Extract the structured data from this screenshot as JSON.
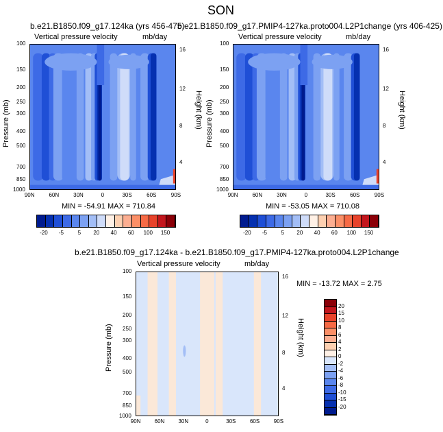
{
  "page_title": "SON",
  "colors": {
    "pos": [
      "#fff1e6",
      "#fdd0b1",
      "#fcae91",
      "#fb8f67",
      "#f66a45",
      "#e8432b",
      "#c3161d",
      "#8b0008"
    ],
    "neg": [
      "#001b8f",
      "#0530b0",
      "#1f4fd6",
      "#3d6ae6",
      "#5a86ee",
      "#7ca1f2",
      "#a3bef6",
      "#cfdcf9"
    ],
    "diff_base": "#d9e6fb",
    "diff_warm": "#fbe8d8"
  },
  "chart_data": [
    {
      "type": "heatmap",
      "title": "b.e21.B1850.f09_g17.124ka (yrs 456-475)",
      "left_label": "Vertical pressure velocity",
      "right_label": "mb/day",
      "ylabel": "Pressure (mb)",
      "y2label": "Height (km)",
      "x_ticks": [
        "90N",
        "60N",
        "30N",
        "0",
        "30S",
        "60S",
        "90S"
      ],
      "y_ticks": [
        "100",
        "150",
        "200",
        "250",
        "300",
        "400",
        "500",
        "700",
        "850",
        "1000"
      ],
      "y2_ticks": [
        "16",
        "12",
        "8",
        "4"
      ],
      "stats": "MIN = -54.91   MAX = 710.84"
    },
    {
      "type": "heatmap",
      "title": "b.e21.B1850.f09_g17.PMIP4-127ka.proto004.L2P1change (yrs 406-425)",
      "left_label": "Vertical pressure velocity",
      "right_label": "mb/day",
      "ylabel": "Pressure (mb)",
      "y2label": "Height (km)",
      "x_ticks": [
        "90N",
        "60N",
        "30N",
        "0",
        "30S",
        "60S",
        "90S"
      ],
      "y_ticks": [
        "100",
        "150",
        "200",
        "250",
        "300",
        "400",
        "500",
        "700",
        "850",
        "1000"
      ],
      "y2_ticks": [
        "16",
        "12",
        "8",
        "4"
      ],
      "stats": "MIN = -53.05   MAX = 710.08"
    },
    {
      "type": "heatmap",
      "title": "b.e21.B1850.f09_g17.124ka - b.e21.B1850.f09_g17.PMIP4-127ka.proto004.L2P1change",
      "left_label": "Vertical pressure velocity",
      "right_label": "mb/day",
      "ylabel": "Pressure (mb)",
      "y2label": "Height (km)",
      "x_ticks": [
        "90N",
        "60N",
        "30N",
        "0",
        "30S",
        "60S",
        "90S"
      ],
      "y_ticks": [
        "100",
        "150",
        "200",
        "250",
        "300",
        "400",
        "500",
        "700",
        "850",
        "1000"
      ],
      "y2_ticks": [
        "16",
        "12",
        "8",
        "4"
      ],
      "stats": "MIN = -13.72   MAX =   2.75"
    }
  ],
  "colorbar_top": {
    "labels": [
      "-20",
      "-5",
      "5",
      "20",
      "40",
      "60",
      "100",
      "150"
    ]
  },
  "colorbar_diff": {
    "labels": [
      "20",
      "15",
      "10",
      "8",
      "6",
      "4",
      "2",
      "0",
      "-2",
      "-4",
      "-6",
      "-8",
      "-10",
      "-15",
      "-20"
    ]
  }
}
